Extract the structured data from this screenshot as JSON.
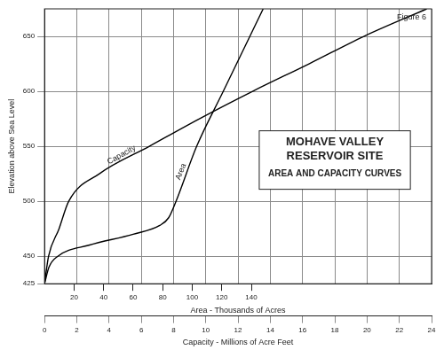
{
  "chart_data": {
    "type": "line",
    "title": "MOHAVE VALLEY RESERVOIR SITE",
    "subtitle": "AREA AND CAPACITY CURVES",
    "annotations": [
      "Figure 6"
    ],
    "y_label": "Elevation above Sea Level",
    "x_label": "Capacity - Millions of Acre Feet",
    "x2_label": "Area - Thousands of Acres",
    "xlim": [
      0,
      24
    ],
    "xticks": [
      0,
      2,
      4,
      6,
      8,
      10,
      12,
      14,
      16,
      18,
      20,
      22,
      24
    ],
    "x2lim": [
      0,
      262
    ],
    "x2ticks": [
      20,
      40,
      60,
      80,
      100,
      120,
      140
    ],
    "ylim": [
      425,
      675
    ],
    "yticks": [
      425,
      450,
      500,
      550,
      600,
      650
    ],
    "grid": true,
    "series": [
      {
        "name": "Capacity",
        "color": "#000000",
        "axis": "x",
        "x": [
          0,
          0.25,
          0.9,
          1.5,
          3.4,
          6.5,
          9.6,
          12.9,
          16.4,
          19.8,
          23.7
        ],
        "y": [
          425,
          450,
          475,
          500,
          525,
          550,
          575,
          600,
          625,
          650,
          675
        ]
      },
      {
        "name": "Area",
        "color": "#000000",
        "axis": "x2",
        "x": [
          0,
          3,
          9,
          30,
          60,
          78,
          84,
          89,
          103,
          121,
          139,
          148
        ],
        "y": [
          425,
          440,
          450,
          460,
          470,
          478,
          485,
          500,
          550,
          600,
          650,
          675
        ]
      }
    ]
  }
}
